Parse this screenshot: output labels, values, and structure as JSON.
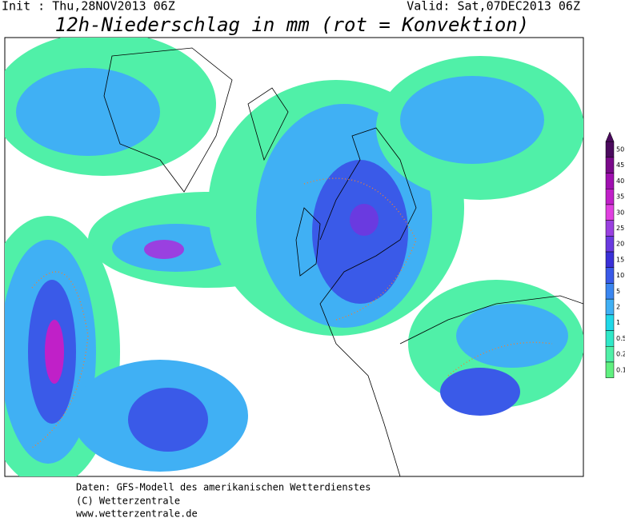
{
  "header": {
    "init": "Init : Thu,28NOV2013 06Z",
    "valid": "Valid: Sat,07DEC2013 06Z",
    "title": "12h-Niederschlag in mm (rot = Konvektion)"
  },
  "legend": {
    "levels": [
      {
        "label": "50",
        "color": "#4b0a5e"
      },
      {
        "label": "45",
        "color": "#7a0a8a"
      },
      {
        "label": "40",
        "color": "#a010b0"
      },
      {
        "label": "35",
        "color": "#c020c8"
      },
      {
        "label": "30",
        "color": "#e040e0"
      },
      {
        "label": "25",
        "color": "#9a40e0"
      },
      {
        "label": "20",
        "color": "#6a3ae0"
      },
      {
        "label": "15",
        "color": "#3a30d8"
      },
      {
        "label": "10",
        "color": "#3a5ae8"
      },
      {
        "label": "5",
        "color": "#3a86f0"
      },
      {
        "label": "2",
        "color": "#40b0f4"
      },
      {
        "label": "1",
        "color": "#20d8e8"
      },
      {
        "label": "0.5",
        "color": "#30e8c8"
      },
      {
        "label": "0.2",
        "color": "#50f0a8"
      },
      {
        "label": "0.1",
        "color": "#60f080"
      }
    ]
  },
  "footer": {
    "lines": [
      "Daten: GFS-Modell des amerikanischen Wetterdienstes",
      "(C) Wetterzentrale",
      "www.wetterzentrale.de"
    ]
  }
}
